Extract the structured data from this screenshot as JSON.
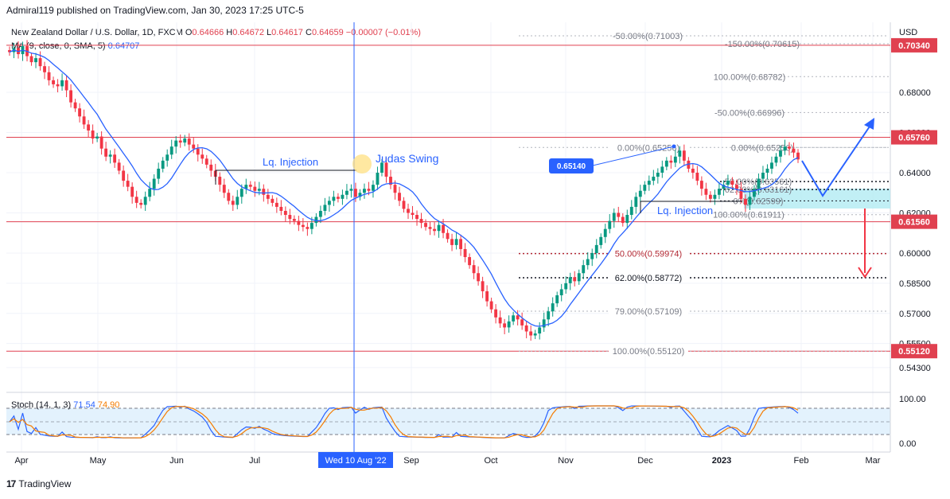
{
  "header": {
    "publisher_line": "Admiral119 published on TradingView.com, Jan 30, 2023 17:25 UTC-5"
  },
  "legend": {
    "symbol": "New Zealand Dollar / U.S. Dollar, 1D, FXCM",
    "o_label": "O",
    "o_value": "0.64666",
    "h_label": "H",
    "h_value": "0.64672",
    "l_label": "L",
    "l_value": "0.64617",
    "c_label": "C",
    "c_value": "0.64659",
    "change": "−0.00007 (−0.01%)",
    "ma_label": "MA (9, close, 0, SMA, 5)",
    "ma_value": "0.64707"
  },
  "stoch_legend": {
    "label": "Stoch (14, 1, 3)",
    "k_value": "71.54",
    "d_value": "74.90"
  },
  "footer": {
    "brand": "TradingView",
    "logo_text": "17"
  },
  "colors": {
    "up": "#089981",
    "down": "#f23645",
    "ma": "#2962ff",
    "level_line": "#e04150",
    "stoch_k": "#2962ff",
    "stoch_d": "#f57c00",
    "zone": "#b2ebf2",
    "stoch_band": "#e3f2fd"
  },
  "chart_data": {
    "type": "candlestick",
    "currency": "USD",
    "y_ticks": [
      "0.68000",
      "0.66000",
      "0.64000",
      "0.62000",
      "0.60000",
      "0.58500",
      "0.57000",
      "0.55500",
      "0.54300"
    ],
    "x_ticks": [
      "Apr",
      "May",
      "Jun",
      "Jul",
      "Sep",
      "Oct",
      "Nov",
      "Dec",
      "2023",
      "Feb",
      "Mar"
    ],
    "crosshair_date": "Wed 10 Aug '22",
    "price_badges": [
      {
        "label": "0.70340",
        "value": 0.7034
      },
      {
        "label": "0.65760",
        "value": 0.6576
      },
      {
        "label": "0.61560",
        "value": 0.6156
      },
      {
        "label": "0.55120",
        "value": 0.5512
      }
    ],
    "horizontal_levels": [
      0.7034,
      0.6576,
      0.6156,
      0.5512
    ],
    "fib_retracement": [
      {
        "label": "0.00%(0.65256)",
        "value": 0.65256
      },
      {
        "label": "50.00%(0.59974)",
        "value": 0.59974
      },
      {
        "label": "62.00%(0.58772)",
        "value": 0.58772
      },
      {
        "label": "79.00%(0.57109)",
        "value": 0.57109
      },
      {
        "label": "100.00%(0.55120)",
        "value": 0.5512
      }
    ],
    "fib_extension": [
      {
        "label": "-50.00%(0.71003)",
        "value": 0.71003
      },
      {
        "label": "-150.00%(0.70615)",
        "value": 0.70615
      },
      {
        "label": "100.00%(0.68782)",
        "value": 0.68782
      },
      {
        "label": "-50.00%(0.66996)",
        "value": 0.66996
      },
      {
        "label": "0.00%(0.65256)",
        "value": 0.65256
      },
      {
        "label": "50.00%(0.63561)",
        "value": 0.63561
      },
      {
        "label": "62.00%(0.63161)",
        "value": 0.63161
      },
      {
        "label": "0%(0.62599)",
        "value": 0.62599
      },
      {
        "label": "100.00%(0.61911)",
        "value": 0.61911
      }
    ],
    "annotations": {
      "lq_injection_1": "Lq. Injection",
      "judas_swing": "Judas Swing",
      "lq_injection_2": "Lq. Injection",
      "callout_value": "0.65140"
    },
    "stoch": {
      "y_ticks": [
        "100.00",
        "0.00"
      ],
      "k_last": 71.54,
      "d_last": 74.9,
      "upper_band": 80,
      "lower_band": 20
    },
    "series_close": [
      0.7,
      0.702,
      0.699,
      0.703,
      0.698,
      0.695,
      0.697,
      0.693,
      0.69,
      0.686,
      0.684,
      0.683,
      0.686,
      0.681,
      0.675,
      0.672,
      0.668,
      0.664,
      0.661,
      0.657,
      0.658,
      0.652,
      0.648,
      0.649,
      0.645,
      0.641,
      0.636,
      0.633,
      0.628,
      0.625,
      0.624,
      0.628,
      0.632,
      0.637,
      0.642,
      0.646,
      0.649,
      0.653,
      0.656,
      0.655,
      0.657,
      0.654,
      0.652,
      0.649,
      0.647,
      0.644,
      0.641,
      0.638,
      0.634,
      0.63,
      0.626,
      0.624,
      0.628,
      0.632,
      0.634,
      0.633,
      0.631,
      0.632,
      0.629,
      0.627,
      0.625,
      0.623,
      0.621,
      0.619,
      0.617,
      0.616,
      0.614,
      0.613,
      0.612,
      0.615,
      0.618,
      0.621,
      0.624,
      0.626,
      0.628,
      0.627,
      0.629,
      0.631,
      0.632,
      0.628,
      0.63,
      0.632,
      0.631,
      0.634,
      0.64,
      0.645,
      0.638,
      0.634,
      0.63,
      0.626,
      0.622,
      0.62,
      0.619,
      0.617,
      0.615,
      0.613,
      0.612,
      0.611,
      0.614,
      0.61,
      0.607,
      0.604,
      0.607,
      0.602,
      0.598,
      0.594,
      0.59,
      0.586,
      0.581,
      0.576,
      0.572,
      0.568,
      0.565,
      0.563,
      0.566,
      0.569,
      0.567,
      0.564,
      0.561,
      0.559,
      0.56,
      0.563,
      0.567,
      0.571,
      0.575,
      0.579,
      0.582,
      0.585,
      0.588,
      0.586,
      0.59,
      0.594,
      0.597,
      0.6,
      0.604,
      0.608,
      0.612,
      0.616,
      0.62,
      0.618,
      0.615,
      0.619,
      0.623,
      0.628,
      0.631,
      0.634,
      0.636,
      0.638,
      0.64,
      0.643,
      0.646,
      0.645,
      0.648,
      0.651,
      0.646,
      0.642,
      0.64,
      0.636,
      0.632,
      0.629,
      0.627,
      0.629,
      0.632,
      0.634,
      0.636,
      0.634,
      0.632,
      0.627,
      0.624,
      0.628,
      0.632,
      0.637,
      0.64,
      0.642,
      0.645,
      0.648,
      0.651,
      0.653,
      0.652,
      0.65,
      0.6466
    ]
  }
}
